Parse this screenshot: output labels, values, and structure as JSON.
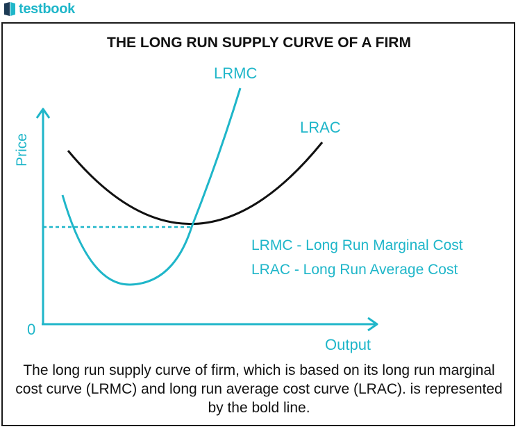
{
  "brand": {
    "name": "testbook"
  },
  "title": "THE LONG RUN SUPPLY CURVE OF A FIRM",
  "axes": {
    "y_label": "Price",
    "x_label": "Output",
    "origin_label": "0"
  },
  "curves": {
    "lrmc_label": "LRMC",
    "lrac_label": "LRAC"
  },
  "legend": [
    "LRMC - Long Run Marginal Cost",
    "LRAC - Long Run Average Cost"
  ],
  "caption": "The long run supply curve of firm, which is based on its long run marginal cost curve (LRMC) and long run average cost curve (LRAC). is represented by the bold line.",
  "colors": {
    "accent": "#1fb6c9",
    "black": "#111111"
  },
  "icons": {
    "brand_logo": "testbook-logo-icon"
  }
}
